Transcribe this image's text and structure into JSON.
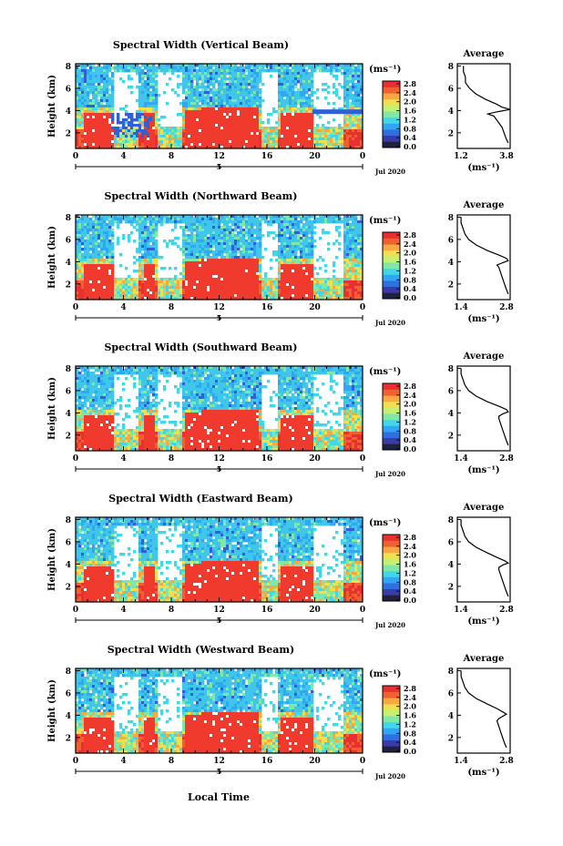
{
  "colors": {
    "scale": [
      "#202040",
      "#3a3aa8",
      "#2f6fe0",
      "#2fa7f2",
      "#40d8e8",
      "#7ee8a8",
      "#c8f070",
      "#f0e050",
      "#f8a840",
      "#f06030",
      "#e83030"
    ],
    "high": "#f03a2e",
    "cyan": "#3fc6e8",
    "blue": "#3060d8",
    "navy": "#303090"
  },
  "x_label": "Local Time",
  "chart_data": [
    {
      "type": "heatmap",
      "title": "Spectral Width (Vertical Beam)",
      "ylabel": "Height (km)",
      "y_ticks": [
        "8",
        "6",
        "4",
        "2"
      ],
      "x_ticks": [
        "0",
        "4",
        "8",
        "12",
        "16",
        "20",
        "0"
      ],
      "date_tick": "5",
      "date_label": "Jul 2020",
      "colorbar": {
        "unit": "(ms⁻¹)",
        "ticks": [
          "2.8",
          "2.4",
          "2.0",
          "1.6",
          "1.2",
          "0.8",
          "0.4",
          "0.0"
        ]
      },
      "profile": {
        "title": "Average",
        "y_ticks": [
          "8",
          "6",
          "4",
          "2"
        ],
        "x_ticks": [
          "1.2",
          "3.8"
        ],
        "unit": "(ms⁻¹)",
        "xlim": [
          1.2,
          3.8
        ],
        "heights": [
          8,
          7.5,
          7,
          6.5,
          6,
          5.5,
          5,
          4.6,
          4.3,
          4.1,
          3.9,
          3.7,
          3.5,
          3.0,
          2.5,
          2.0,
          1.5,
          1.1
        ],
        "values": [
          1.5,
          1.5,
          1.6,
          1.6,
          1.8,
          2.1,
          2.6,
          3.1,
          3.4,
          3.8,
          3.2,
          2.7,
          3.0,
          3.2,
          3.4,
          3.5,
          3.6,
          3.7
        ]
      }
    },
    {
      "type": "heatmap",
      "title": "Spectral Width (Northward Beam)",
      "ylabel": "Height (km)",
      "y_ticks": [
        "8",
        "6",
        "4",
        "2"
      ],
      "x_ticks": [
        "0",
        "4",
        "8",
        "12",
        "16",
        "20",
        "0"
      ],
      "date_tick": "5",
      "date_label": "Jul 2020",
      "colorbar": {
        "unit": "(ms⁻¹)",
        "ticks": [
          "2.8",
          "2.4",
          "2.0",
          "1.6",
          "1.2",
          "0.8",
          "0.4",
          "0.0"
        ]
      },
      "profile": {
        "title": "Average",
        "y_ticks": [
          "8",
          "6",
          "4",
          "2"
        ],
        "x_ticks": [
          "1.4",
          "2.8"
        ],
        "unit": "(ms⁻¹)",
        "xlim": [
          1.4,
          2.8
        ],
        "heights": [
          8,
          7.5,
          7,
          6.5,
          6,
          5.5,
          5,
          4.6,
          4.3,
          4.1,
          3.9,
          3.7,
          3.5,
          3.0,
          2.5,
          2.0,
          1.5,
          1.1
        ],
        "values": [
          1.5,
          1.5,
          1.55,
          1.6,
          1.7,
          1.9,
          2.2,
          2.5,
          2.7,
          2.75,
          2.6,
          2.45,
          2.5,
          2.55,
          2.6,
          2.65,
          2.7,
          2.75
        ]
      }
    },
    {
      "type": "heatmap",
      "title": "Spectral Width (Southward Beam)",
      "ylabel": "Height (km)",
      "y_ticks": [
        "8",
        "6",
        "4",
        "2"
      ],
      "x_ticks": [
        "0",
        "4",
        "8",
        "12",
        "16",
        "20",
        "0"
      ],
      "date_tick": "5",
      "date_label": "Jul 2020",
      "colorbar": {
        "unit": "(ms⁻¹)",
        "ticks": [
          "2.8",
          "2.4",
          "2.0",
          "1.6",
          "1.2",
          "0.8",
          "0.4",
          "0.0"
        ]
      },
      "profile": {
        "title": "Average",
        "y_ticks": [
          "8",
          "6",
          "4",
          "2"
        ],
        "x_ticks": [
          "1.4",
          "2.8"
        ],
        "unit": "(ms⁻¹)",
        "xlim": [
          1.4,
          2.8
        ],
        "heights": [
          8,
          7.5,
          7,
          6.5,
          6,
          5.5,
          5,
          4.6,
          4.3,
          4.1,
          3.9,
          3.7,
          3.5,
          3.0,
          2.5,
          2.0,
          1.5,
          1.1
        ],
        "values": [
          1.5,
          1.5,
          1.55,
          1.6,
          1.7,
          1.9,
          2.2,
          2.5,
          2.7,
          2.75,
          2.6,
          2.5,
          2.5,
          2.55,
          2.6,
          2.65,
          2.7,
          2.75
        ]
      }
    },
    {
      "type": "heatmap",
      "title": "Spectral Width (Eastward Beam)",
      "ylabel": "Height (km)",
      "y_ticks": [
        "8",
        "6",
        "4",
        "2"
      ],
      "x_ticks": [
        "0",
        "4",
        "8",
        "12",
        "16",
        "20",
        "0"
      ],
      "date_tick": "5",
      "date_label": "Jul 2020",
      "colorbar": {
        "unit": "(ms⁻¹)",
        "ticks": [
          "2.8",
          "2.4",
          "2.0",
          "1.6",
          "1.2",
          "0.8",
          "0.4",
          "0.0"
        ]
      },
      "profile": {
        "title": "Average",
        "y_ticks": [
          "8",
          "6",
          "4",
          "2"
        ],
        "x_ticks": [
          "1.4",
          "2.8"
        ],
        "unit": "(ms⁻¹)",
        "xlim": [
          1.4,
          2.8
        ],
        "heights": [
          8,
          7.5,
          7,
          6.5,
          6,
          5.5,
          5,
          4.6,
          4.3,
          4.1,
          3.9,
          3.7,
          3.5,
          3.0,
          2.5,
          2.0,
          1.5,
          1.1
        ],
        "values": [
          1.5,
          1.5,
          1.55,
          1.6,
          1.7,
          1.9,
          2.2,
          2.45,
          2.65,
          2.75,
          2.6,
          2.5,
          2.5,
          2.55,
          2.6,
          2.65,
          2.7,
          2.75
        ]
      }
    },
    {
      "type": "heatmap",
      "title": "Spectral Width (Westward Beam)",
      "ylabel": "Height (km)",
      "y_ticks": [
        "8",
        "6",
        "4",
        "2"
      ],
      "x_ticks": [
        "0",
        "4",
        "8",
        "12",
        "16",
        "20",
        "0"
      ],
      "date_tick": "5",
      "date_label": "Jul 2020",
      "colorbar": {
        "unit": "(ms⁻¹)",
        "ticks": [
          "2.8",
          "2.4",
          "2.0",
          "1.6",
          "1.2",
          "0.8",
          "0.4",
          "0.0"
        ]
      },
      "profile": {
        "title": "Average",
        "y_ticks": [
          "8",
          "6",
          "4",
          "2"
        ],
        "x_ticks": [
          "1.4",
          "2.8"
        ],
        "unit": "(ms⁻¹)",
        "xlim": [
          1.4,
          2.8
        ],
        "heights": [
          8,
          7.5,
          7,
          6.5,
          6,
          5.5,
          5,
          4.6,
          4.3,
          4.1,
          3.9,
          3.7,
          3.5,
          3.0,
          2.5,
          2.0,
          1.5,
          1.1
        ],
        "values": [
          1.5,
          1.5,
          1.55,
          1.6,
          1.7,
          1.9,
          2.2,
          2.45,
          2.6,
          2.7,
          2.6,
          2.5,
          2.45,
          2.5,
          2.55,
          2.6,
          2.65,
          2.7
        ]
      }
    }
  ]
}
